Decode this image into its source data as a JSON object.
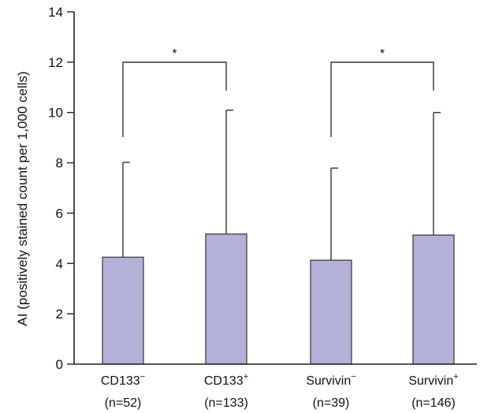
{
  "chart_data": {
    "type": "bar",
    "title": "",
    "xlabel": "",
    "ylabel": "AI (positively stained count per 1,000 cells)",
    "ylim": [
      0,
      14
    ],
    "yticks": [
      0,
      2,
      4,
      6,
      8,
      10,
      12,
      14
    ],
    "colors": {
      "bar": "#b3b1d8",
      "edge": "#333333"
    },
    "categories": [
      {
        "name": "CD133",
        "sup": "−",
        "n": "(n=52)"
      },
      {
        "name": "CD133",
        "sup": "+",
        "n": "(n=133)"
      },
      {
        "name": "Survivin",
        "sup": "−",
        "n": "(n=39)"
      },
      {
        "name": "Survivin",
        "sup": "+",
        "n": "(n=146)"
      }
    ],
    "values": [
      4.25,
      5.17,
      4.13,
      5.13
    ],
    "error_upper": [
      8.02,
      10.09,
      7.79,
      10.0
    ],
    "significance": [
      {
        "from": 0,
        "to": 1,
        "label": "*"
      },
      {
        "from": 2,
        "to": 3,
        "label": "*"
      }
    ],
    "grid": false
  }
}
